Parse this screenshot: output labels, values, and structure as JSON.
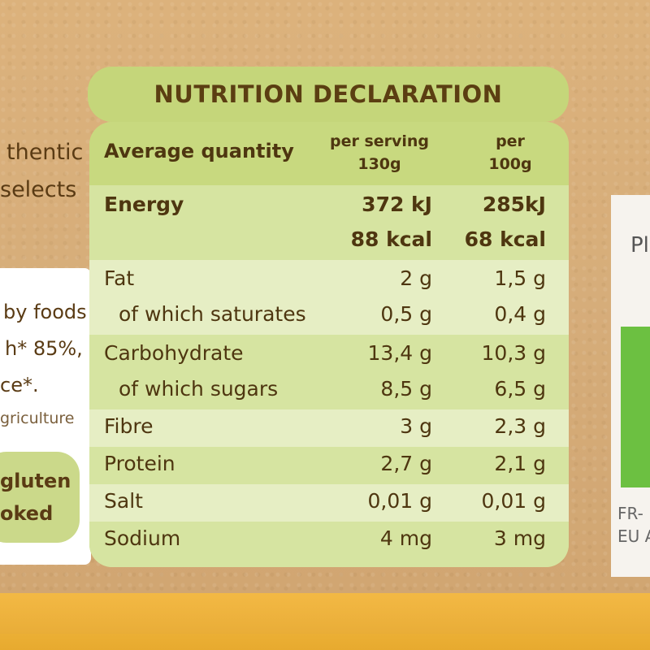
{
  "left_fragments": {
    "top_lines": [
      "thentic",
      "selects"
    ],
    "mid_lines": [
      "by foods",
      "h* 85%,",
      "ce*."
    ],
    "agri_line": "griculture",
    "gluten_lines": [
      "gluten",
      "oked"
    ]
  },
  "right_fragments": {
    "line1": "Pl",
    "bottom_lines": [
      "FR-",
      "EU A"
    ]
  },
  "nutrition": {
    "title": "NUTRITION DECLARATION",
    "header": {
      "label": "Average quantity",
      "col1_line1": "per serving",
      "col1_line2": "130g",
      "col2_line1": "per",
      "col2_line2": "100g"
    },
    "rows": [
      {
        "label": "Energy",
        "v1": "372 kJ",
        "v2": "285kJ"
      },
      {
        "label": "",
        "v1": "88 kcal",
        "v2": "68 kcal"
      },
      {
        "label": "Fat",
        "v1": "2 g",
        "v2": "1,5 g"
      },
      {
        "label": "of which saturates",
        "v1": "0,5 g",
        "v2": "0,4 g"
      },
      {
        "label": "Carbohydrate",
        "v1": "13,4 g",
        "v2": "10,3 g"
      },
      {
        "label": "of which sugars",
        "v1": "8,5 g",
        "v2": "6,5 g"
      },
      {
        "label": "Fibre",
        "v1": "3 g",
        "v2": "2,3 g"
      },
      {
        "label": "Protein",
        "v1": "2,7 g",
        "v2": "2,1 g"
      },
      {
        "label": "Salt",
        "v1": "0,01 g",
        "v2": "0,01 g"
      },
      {
        "label": "Sodium",
        "v1": "4 mg",
        "v2": "3 mg"
      }
    ]
  }
}
